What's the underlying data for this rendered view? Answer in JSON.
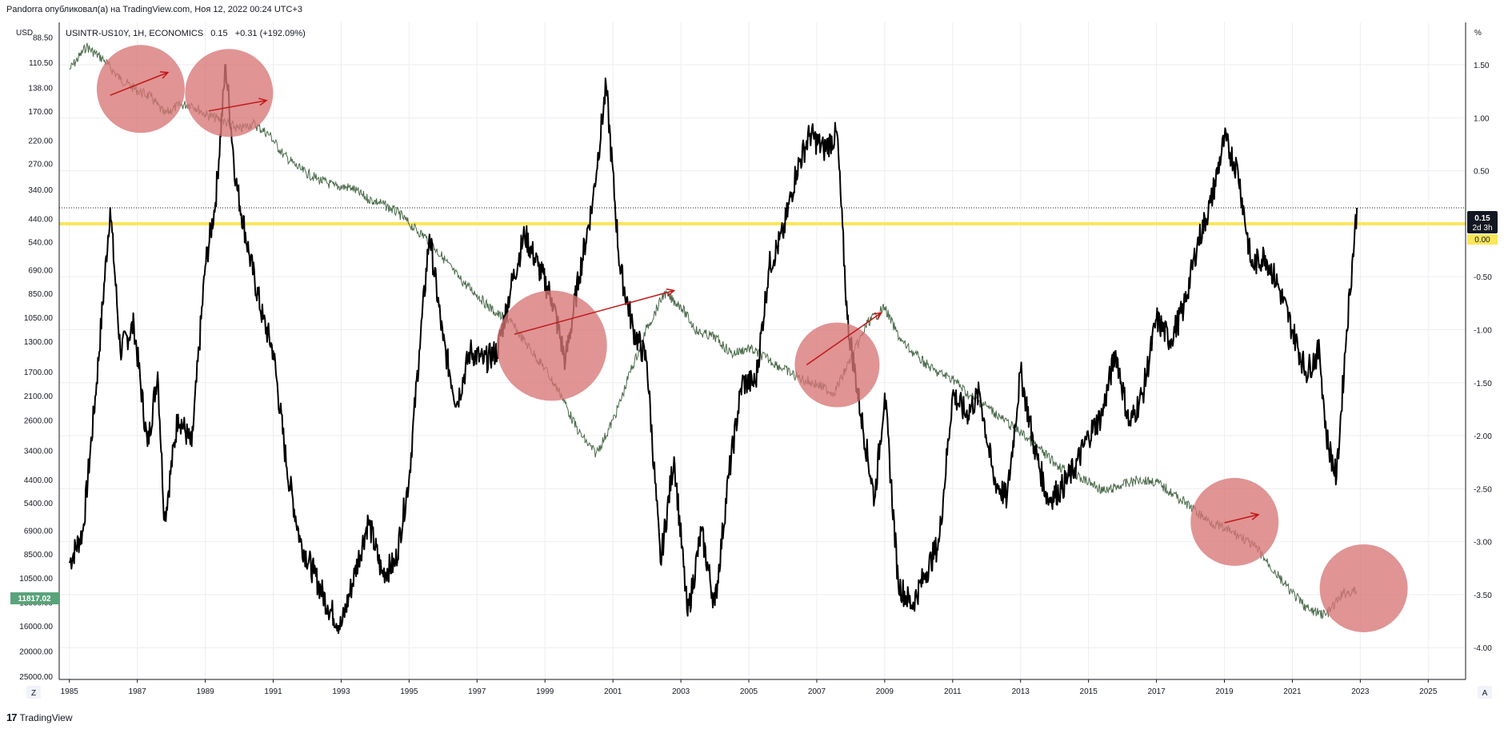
{
  "header": {
    "attribution": "Pandorra опубликовал(а) на TradingView.com, Ноя 12, 2022 00:24 UTC+3"
  },
  "footer": {
    "brand": "TradingView",
    "brand_mark": "17"
  },
  "corner_labels": {
    "left_unit": "USD",
    "right_unit": "%",
    "zoom_left": "Z",
    "zoom_right": "A"
  },
  "legend": {
    "symbol": "USINTR-US10Y, 1H, ECONOMICS",
    "last": "0.15",
    "change": "+0.31 (+192.09%)"
  },
  "price_tags": {
    "left_price": "11817.02",
    "right_value": "0.15",
    "right_countdown": "2d 3h",
    "zero_tag": "0.00"
  },
  "colors": {
    "spread_line": "#000000",
    "index_line": "#4a6b4a",
    "zero_line": "#fbe55a",
    "circle": "#d77676",
    "arrow": "#c21818",
    "left_tag_bg": "#5aa37a",
    "right_tag_bg": "#131722",
    "grid": "#eceef2"
  },
  "chart_data": {
    "type": "line",
    "title": "",
    "x_ticks": [
      "1985",
      "1987",
      "1989",
      "1991",
      "1993",
      "1995",
      "1997",
      "1999",
      "2001",
      "2003",
      "2005",
      "2007",
      "2009",
      "2011",
      "2013",
      "2015",
      "2017",
      "2019",
      "2021",
      "2023",
      "2025"
    ],
    "xlim": [
      1984.7,
      2026.1
    ],
    "left_axis": {
      "unit": "USD",
      "scale": "log-inverted",
      "ticks": [
        "88.50",
        "110.50",
        "138.00",
        "170.00",
        "220.00",
        "270.00",
        "340.00",
        "440.00",
        "540.00",
        "690.00",
        "850.00",
        "1050.00",
        "1300.00",
        "1700.00",
        "2100.00",
        "2600.00",
        "3400.00",
        "4400.00",
        "5400.00",
        "6900.00",
        "8500.00",
        "10500.00",
        "13000.00",
        "16000.00",
        "20000.00",
        "25000.00"
      ]
    },
    "right_axis": {
      "unit": "%",
      "ylim": [
        -4.3,
        1.9
      ],
      "ticks": [
        "1.50",
        "1.00",
        "0.50",
        "0.00",
        "-0.50",
        "-1.00",
        "-1.50",
        "-2.00",
        "-2.50",
        "-3.00",
        "-3.50",
        "-4.00"
      ]
    },
    "series": [
      {
        "name": "USINTR-US10Y",
        "axis": "right",
        "x": [
          1985.0,
          1985.4,
          1985.8,
          1986.2,
          1986.5,
          1986.9,
          1987.3,
          1987.6,
          1987.8,
          1988.2,
          1988.6,
          1989.0,
          1989.3,
          1989.6,
          1989.9,
          1990.3,
          1990.7,
          1991.0,
          1991.4,
          1991.8,
          1992.2,
          1992.6,
          1993.0,
          1993.4,
          1993.8,
          1994.2,
          1994.6,
          1995.0,
          1995.3,
          1995.6,
          1996.0,
          1996.4,
          1996.8,
          1997.2,
          1997.6,
          1998.0,
          1998.4,
          1998.8,
          1999.2,
          1999.6,
          2000.0,
          2000.4,
          2000.8,
          2001.2,
          2001.6,
          2002.0,
          2002.4,
          2002.8,
          2003.2,
          2003.6,
          2004.0,
          2004.4,
          2004.8,
          2005.2,
          2005.6,
          2006.0,
          2006.4,
          2006.8,
          2007.2,
          2007.6,
          2007.9,
          2008.3,
          2008.7,
          2009.0,
          2009.4,
          2009.8,
          2010.2,
          2010.6,
          2011.0,
          2011.4,
          2011.8,
          2012.2,
          2012.6,
          2013.0,
          2013.4,
          2013.8,
          2014.2,
          2014.6,
          2015.0,
          2015.4,
          2015.8,
          2016.2,
          2016.6,
          2017.0,
          2017.4,
          2017.8,
          2018.2,
          2018.6,
          2019.0,
          2019.4,
          2019.8,
          2020.2,
          2020.6,
          2021.0,
          2021.4,
          2021.8,
          2022.0,
          2022.3,
          2022.6,
          2022.9
        ],
        "y": [
          -3.2,
          -2.9,
          -1.5,
          0.15,
          -1.2,
          -0.95,
          -2.1,
          -1.4,
          -2.8,
          -1.8,
          -2.1,
          -0.4,
          0.2,
          1.5,
          0.4,
          -0.3,
          -0.9,
          -1.2,
          -2.3,
          -3.0,
          -3.3,
          -3.6,
          -3.8,
          -3.3,
          -2.8,
          -3.3,
          -3.2,
          -2.4,
          -1.2,
          -0.1,
          -1.1,
          -1.7,
          -1.2,
          -1.3,
          -1.2,
          -0.6,
          -0.1,
          -0.4,
          -0.7,
          -1.3,
          -0.5,
          0.2,
          1.3,
          -0.4,
          -1.0,
          -1.3,
          -3.2,
          -2.2,
          -3.7,
          -2.9,
          -3.6,
          -2.4,
          -1.5,
          -1.5,
          -0.4,
          -0.1,
          0.5,
          0.85,
          0.7,
          0.85,
          -0.9,
          -1.8,
          -2.6,
          -1.6,
          -3.4,
          -3.6,
          -3.3,
          -3.0,
          -1.6,
          -1.8,
          -1.6,
          -2.4,
          -2.6,
          -1.4,
          -2.1,
          -2.6,
          -2.5,
          -2.3,
          -2.0,
          -1.8,
          -1.2,
          -1.9,
          -1.6,
          -0.9,
          -1.1,
          -0.8,
          -0.2,
          0.2,
          0.8,
          0.5,
          -0.4,
          -0.3,
          -0.6,
          -1.0,
          -1.4,
          -1.2,
          -2.0,
          -2.4,
          -1.0,
          0.15
        ]
      },
      {
        "name": "",
        "axis": "left",
        "x": [
          1985.0,
          1985.5,
          1986.0,
          1986.5,
          1987.0,
          1987.4,
          1987.8,
          1988.2,
          1988.6,
          1989.0,
          1989.5,
          1990.0,
          1990.4,
          1990.9,
          1991.3,
          1991.8,
          1992.3,
          1992.8,
          1993.3,
          1993.8,
          1994.2,
          1994.7,
          1995.0,
          1995.5,
          1996.0,
          1996.5,
          1997.0,
          1997.5,
          1998.0,
          1998.5,
          1999.0,
          1999.5,
          2000.0,
          2000.5,
          2001.0,
          2001.5,
          2002.0,
          2002.5,
          2003.0,
          2003.5,
          2004.0,
          2004.5,
          2005.0,
          2005.5,
          2006.0,
          2006.5,
          2007.0,
          2007.5,
          2008.0,
          2008.5,
          2009.0,
          2009.5,
          2010.0,
          2010.5,
          2011.0,
          2011.5,
          2012.0,
          2012.5,
          2013.0,
          2013.5,
          2014.0,
          2014.5,
          2015.0,
          2015.5,
          2016.0,
          2016.5,
          2017.0,
          2017.5,
          2018.0,
          2018.5,
          2019.0,
          2019.5,
          2020.0,
          2020.5,
          2021.0,
          2021.5,
          2022.0,
          2022.5,
          2022.9
        ],
        "y": [
          118,
          96,
          108,
          128,
          142,
          150,
          175,
          162,
          160,
          175,
          185,
          200,
          190,
          210,
          250,
          285,
          310,
          330,
          335,
          370,
          385,
          420,
          460,
          520,
          620,
          750,
          860,
          1000,
          1100,
          1350,
          1650,
          2100,
          2900,
          3500,
          2600,
          1700,
          1150,
          850,
          950,
          1200,
          1250,
          1450,
          1380,
          1500,
          1650,
          1800,
          1900,
          2050,
          1500,
          1100,
          960,
          1300,
          1500,
          1700,
          1800,
          2100,
          2300,
          2600,
          2900,
          3300,
          3800,
          4200,
          4500,
          4900,
          4600,
          4400,
          4500,
          5000,
          5600,
          6300,
          6800,
          7300,
          8200,
          10000,
          12000,
          14000,
          14500,
          12000,
          11817
        ]
      }
    ],
    "zero_level": 0.0,
    "last_value": 0.15,
    "highlight_circles": [
      {
        "x": 1987.1,
        "price": 140
      },
      {
        "x": 1989.7,
        "price": 145
      },
      {
        "x": 1999.2,
        "price": 1350
      },
      {
        "x": 2007.6,
        "price": 1600
      },
      {
        "x": 2019.3,
        "price": 6400
      },
      {
        "x": 2023.1,
        "price": 11500
      }
    ],
    "arrows": [
      {
        "x1": 1986.2,
        "p1": 148,
        "x2": 1987.9,
        "p2": 121
      },
      {
        "x1": 1989.1,
        "p1": 170,
        "x2": 1990.8,
        "p2": 155
      },
      {
        "x1": 1998.1,
        "p1": 1220,
        "x2": 2002.8,
        "p2": 830
      },
      {
        "x1": 2006.7,
        "p1": 1600,
        "x2": 2008.9,
        "p2": 1010
      },
      {
        "x1": 2019.0,
        "p1": 6450,
        "x2": 2020.0,
        "p2": 6000
      }
    ]
  }
}
